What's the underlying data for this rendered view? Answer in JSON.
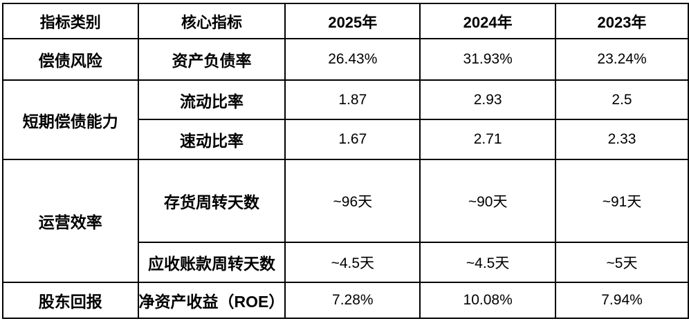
{
  "table": {
    "headers": [
      "指标类别",
      "核心指标",
      "2025年",
      "2024年",
      "2023年"
    ],
    "sections": [
      {
        "category": "偿债风险",
        "rows": [
          {
            "metric": "资产负债率",
            "values": [
              "26.43%",
              "31.93%",
              "23.24%"
            ]
          }
        ]
      },
      {
        "category": "短期偿债能力",
        "rows": [
          {
            "metric": "流动比率",
            "values": [
              "1.87",
              "2.93",
              "2.5"
            ]
          },
          {
            "metric": "速动比率",
            "values": [
              "1.67",
              "2.71",
              "2.33"
            ]
          }
        ]
      },
      {
        "category": "运营效率",
        "rows": [
          {
            "metric": "存货周转天数",
            "values": [
              "~96天",
              "~90天",
              "~91天"
            ]
          },
          {
            "metric": "应收账款周转天数",
            "values": [
              "~4.5天",
              "~4.5天",
              "~5天"
            ]
          }
        ]
      },
      {
        "category": "股东回报",
        "rows": [
          {
            "metric": "净资产收益（ROE）",
            "values": [
              "7.28%",
              "10.08%",
              "7.94%"
            ]
          }
        ]
      }
    ]
  },
  "colors": {
    "grid": "#000000",
    "text": "#000000",
    "background": "#ffffff"
  },
  "chart_data": {
    "type": "table",
    "columns": [
      "指标类别",
      "核心指标",
      "2025年",
      "2024年",
      "2023年"
    ],
    "rows": [
      [
        "偿债风险",
        "资产负债率",
        "26.43%",
        "31.93%",
        "23.24%"
      ],
      [
        "短期偿债能力",
        "流动比率",
        "1.87",
        "2.93",
        "2.5"
      ],
      [
        "短期偿债能力",
        "速动比率",
        "1.67",
        "2.71",
        "2.33"
      ],
      [
        "运营效率",
        "存货周转天数",
        "~96天",
        "~90天",
        "~91天"
      ],
      [
        "运营效率",
        "应收账款周转天数",
        "~4.5天",
        "~4.5天",
        "~5天"
      ],
      [
        "股东回报",
        "净资产收益（ROE）",
        "7.28%",
        "10.08%",
        "7.94%"
      ]
    ]
  }
}
